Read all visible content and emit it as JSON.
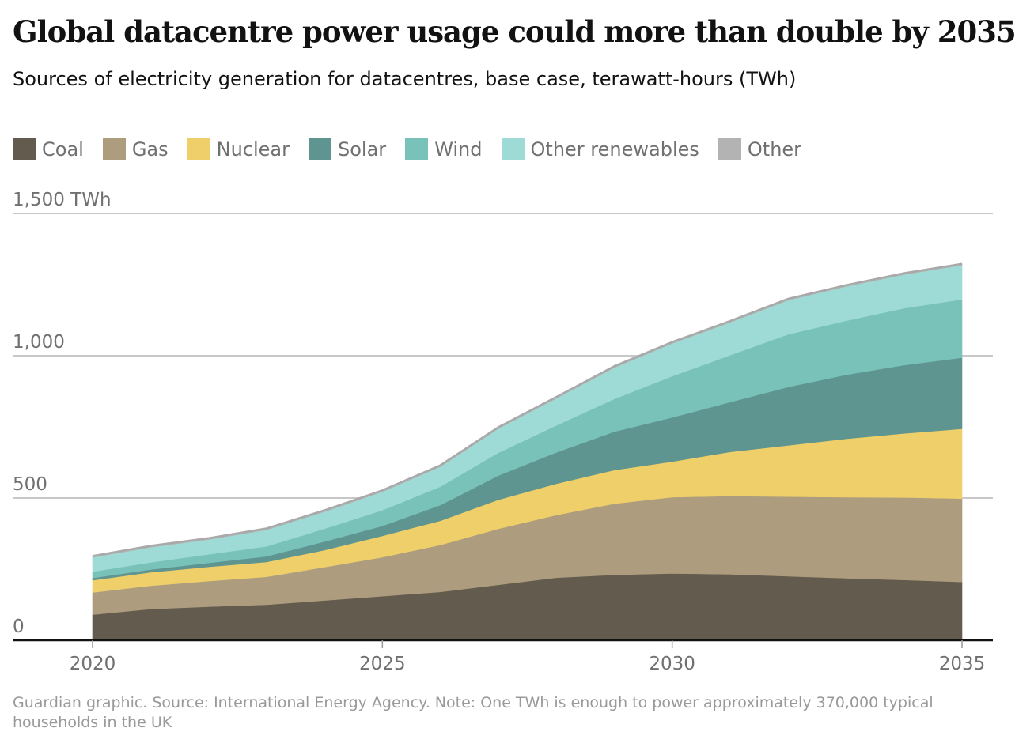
{
  "chart_data": {
    "type": "area",
    "title": "Global datacentre power usage could more than double by 2035",
    "subtitle": "Sources of electricity generation for datacentres, base case, terawatt-hours (TWh)",
    "x": [
      2020,
      2021,
      2022,
      2023,
      2024,
      2025,
      2026,
      2027,
      2028,
      2029,
      2030,
      2031,
      2032,
      2033,
      2034,
      2035
    ],
    "series": [
      {
        "name": "Coal",
        "color": "#645b4f",
        "values": [
          90,
          110,
          118,
          125,
          140,
          155,
          170,
          195,
          220,
          230,
          235,
          232,
          225,
          218,
          212,
          205
        ]
      },
      {
        "name": "Gas",
        "color": "#ad9c7d",
        "values": [
          78,
          82,
          90,
          98,
          117,
          137,
          165,
          197,
          220,
          250,
          268,
          275,
          280,
          285,
          290,
          293
        ]
      },
      {
        "name": "Nuclear",
        "color": "#efcf6a",
        "values": [
          43,
          47,
          50,
          52,
          60,
          75,
          85,
          102,
          110,
          118,
          125,
          155,
          180,
          205,
          225,
          245
        ]
      },
      {
        "name": "Solar",
        "color": "#5f9590",
        "values": [
          8,
          10,
          14,
          20,
          30,
          35,
          55,
          85,
          110,
          135,
          155,
          175,
          205,
          225,
          240,
          250
        ]
      },
      {
        "name": "Wind",
        "color": "#78c2ba",
        "values": [
          22,
          25,
          30,
          35,
          45,
          55,
          65,
          80,
          95,
          115,
          145,
          165,
          185,
          190,
          200,
          205
        ]
      },
      {
        "name": "Other renewables",
        "color": "#9fdbd6",
        "values": [
          50,
          53,
          52,
          58,
          60,
          65,
          70,
          85,
          95,
          110,
          115,
          115,
          120,
          120,
          118,
          120
        ]
      },
      {
        "name": "Other",
        "color": "#b3b3b3",
        "values": [
          5,
          5,
          5,
          5,
          5,
          5,
          5,
          5,
          5,
          5,
          5,
          5,
          5,
          5,
          5,
          5
        ]
      }
    ],
    "xlabel": "",
    "ylabel": "",
    "ylim": [
      0,
      1500
    ],
    "xlim": [
      2020,
      2035
    ],
    "yticks": [
      0,
      500,
      1000,
      1500
    ],
    "ytick_labels": [
      "0",
      "500",
      "1,000",
      "1,500 TWh"
    ],
    "xticks": [
      2020,
      2025,
      2030,
      2035
    ],
    "xtick_labels": [
      "2020",
      "2025",
      "2030",
      "2035"
    ],
    "grid": true,
    "legend": "top"
  },
  "footnote": "Guardian graphic. Source: International Energy Agency. Note: One TWh is enough to power approximately 370,000 typical households in the UK"
}
